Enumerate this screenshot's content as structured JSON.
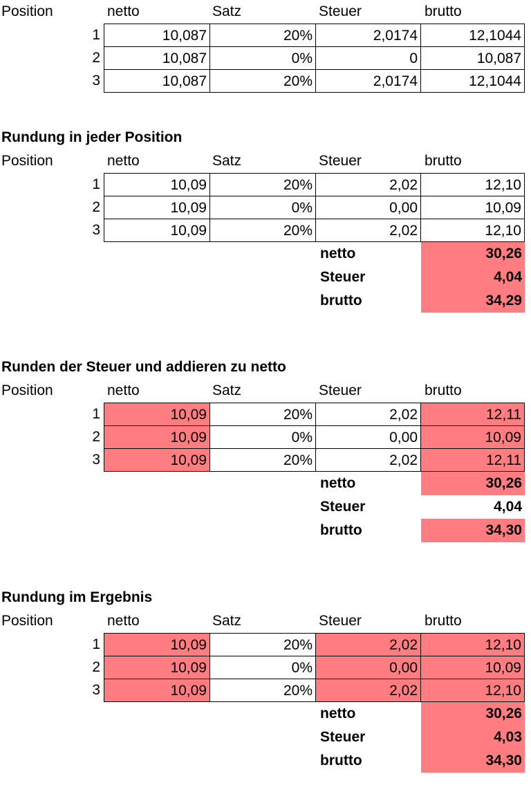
{
  "colors": {
    "highlight": "#ff7c80",
    "grid": "#000000"
  },
  "headers": {
    "position": "Position",
    "netto": "netto",
    "satz": "Satz",
    "steuer": "Steuer",
    "brutto": "brutto"
  },
  "sections": [
    {
      "title": "",
      "rows": [
        {
          "pos": "1",
          "netto": "10,087",
          "satz": "20%",
          "steuer": "2,0174",
          "brutto": "12,1044"
        },
        {
          "pos": "2",
          "netto": "10,087",
          "satz": "0%",
          "steuer": "0",
          "brutto": "10,087"
        },
        {
          "pos": "3",
          "netto": "10,087",
          "satz": "20%",
          "steuer": "2,0174",
          "brutto": "12,1044"
        }
      ],
      "highlight_columns": [],
      "totals": []
    },
    {
      "title": "Rundung in jeder Position",
      "rows": [
        {
          "pos": "1",
          "netto": "10,09",
          "satz": "20%",
          "steuer": "2,02",
          "brutto": "12,10"
        },
        {
          "pos": "2",
          "netto": "10,09",
          "satz": "0%",
          "steuer": "0,00",
          "brutto": "10,09"
        },
        {
          "pos": "3",
          "netto": "10,09",
          "satz": "20%",
          "steuer": "2,02",
          "brutto": "12,10"
        }
      ],
      "highlight_columns": [],
      "totals": [
        {
          "label": "netto",
          "value": "30,26",
          "highlight": true
        },
        {
          "label": "Steuer",
          "value": "4,04",
          "highlight": true
        },
        {
          "label": "brutto",
          "value": "34,29",
          "highlight": true
        }
      ]
    },
    {
      "title": "Runden der Steuer und addieren zu netto",
      "rows": [
        {
          "pos": "1",
          "netto": "10,09",
          "satz": "20%",
          "steuer": "2,02",
          "brutto": "12,11"
        },
        {
          "pos": "2",
          "netto": "10,09",
          "satz": "0%",
          "steuer": "0,00",
          "brutto": "10,09"
        },
        {
          "pos": "3",
          "netto": "10,09",
          "satz": "20%",
          "steuer": "2,02",
          "brutto": "12,11"
        }
      ],
      "highlight_columns": [
        "netto",
        "brutto"
      ],
      "totals": [
        {
          "label": "netto",
          "value": "30,26",
          "highlight": true
        },
        {
          "label": "Steuer",
          "value": "4,04",
          "highlight": false
        },
        {
          "label": "brutto",
          "value": "34,30",
          "highlight": true
        }
      ]
    },
    {
      "title": "Rundung im Ergebnis",
      "rows": [
        {
          "pos": "1",
          "netto": "10,09",
          "satz": "20%",
          "steuer": "2,02",
          "brutto": "12,10"
        },
        {
          "pos": "2",
          "netto": "10,09",
          "satz": "0%",
          "steuer": "0,00",
          "brutto": "10,09"
        },
        {
          "pos": "3",
          "netto": "10,09",
          "satz": "20%",
          "steuer": "2,02",
          "brutto": "12,10"
        }
      ],
      "highlight_columns": [
        "netto",
        "steuer",
        "brutto"
      ],
      "totals": [
        {
          "label": "netto",
          "value": "30,26",
          "highlight": true
        },
        {
          "label": "Steuer",
          "value": "4,03",
          "highlight": true
        },
        {
          "label": "brutto",
          "value": "34,30",
          "highlight": true
        }
      ]
    }
  ]
}
